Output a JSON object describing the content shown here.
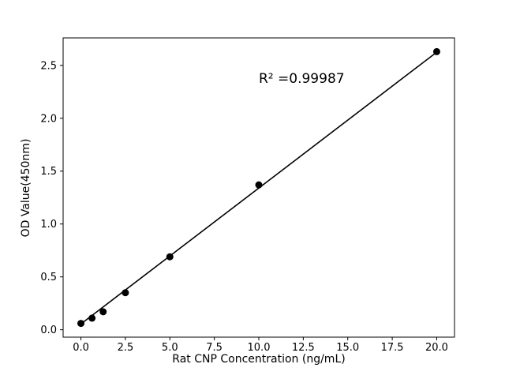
{
  "chart_data": {
    "type": "scatter",
    "title": "",
    "xlabel": "Rat CNP Concentration (ng/mL)",
    "ylabel": "OD Value(450nm)",
    "annotation": "R² =0.99987",
    "x": [
      0,
      0.625,
      1.25,
      2.5,
      5,
      10,
      20
    ],
    "y": [
      0.06,
      0.11,
      0.17,
      0.35,
      0.69,
      1.37,
      2.63
    ],
    "fit_line": {
      "x1": 0,
      "y1": 0.055,
      "x2": 20,
      "y2": 2.625
    },
    "xticks": [
      0.0,
      2.5,
      5.0,
      7.5,
      10.0,
      12.5,
      15.0,
      17.5,
      20.0
    ],
    "xtick_labels": [
      "0.0",
      "2.5",
      "5.0",
      "7.5",
      "10.0",
      "12.5",
      "15.0",
      "17.5",
      "20.0"
    ],
    "yticks": [
      0.0,
      0.5,
      1.0,
      1.5,
      2.0,
      2.5
    ],
    "ytick_labels": [
      "0.0",
      "0.5",
      "1.0",
      "1.5",
      "2.0",
      "2.5"
    ],
    "xlim": [
      -1,
      21
    ],
    "ylim": [
      -0.07,
      2.76
    ],
    "grid": false,
    "legend": "none",
    "marker_color": "#000000",
    "line_color": "#000000",
    "background_color": "#ffffff"
  }
}
